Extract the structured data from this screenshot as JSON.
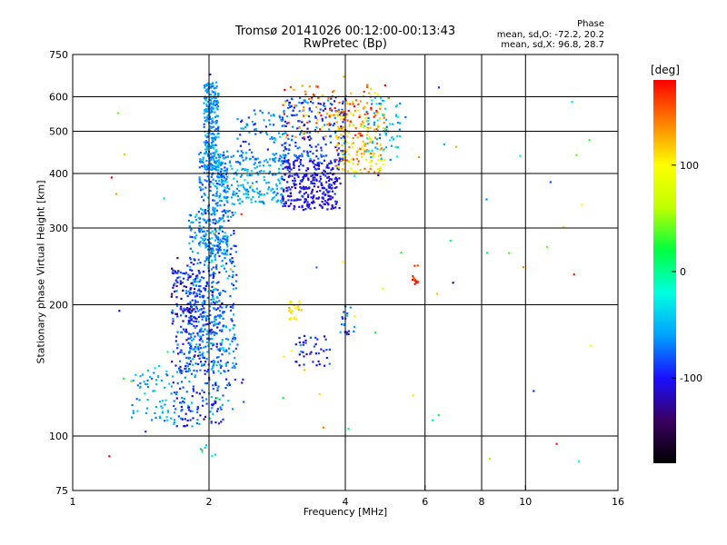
{
  "chart_data": {
    "type": "scatter",
    "title": "Tromsø 20141026 00:12:00-00:13:43",
    "subtitle": "RwPretec (Bp)",
    "phase_info": {
      "title": "Phase",
      "line1": "mean, sd,O: -72.2, 20.2",
      "line2": "mean, sd,X:  96.8, 28.7"
    },
    "xlabel": "Frequency [MHz]",
    "ylabel": "Stationary phase Virtual Height [km]",
    "x_scale": "log",
    "y_scale": "log",
    "xlim": [
      1,
      16
    ],
    "ylim": [
      75,
      750
    ],
    "x_ticks": [
      1,
      2,
      4,
      6,
      8,
      10,
      16
    ],
    "x_tick_labels": [
      "1",
      "2",
      "4",
      "6",
      "8",
      "10",
      "16"
    ],
    "y_ticks": [
      75,
      100,
      200,
      300,
      400,
      500,
      600,
      750
    ],
    "y_tick_labels": [
      "75",
      "100",
      "200",
      "300",
      "400",
      "500",
      "600",
      "750"
    ],
    "grid_x": [
      2,
      4,
      6,
      8,
      10
    ],
    "grid_y": [
      100,
      200,
      300,
      400,
      500,
      600
    ],
    "grid": true,
    "colorbar": {
      "label": "[deg]",
      "range": [
        -180,
        180
      ],
      "ticks": [
        100,
        0,
        -100
      ],
      "tick_labels": [
        "100",
        "0",
        "-100"
      ],
      "colormap": [
        "#000000",
        "#3a0060",
        "#1a10ff",
        "#00a0ff",
        "#00ffe0",
        "#00ff40",
        "#c0ff00",
        "#ffff00",
        "#ff8000",
        "#ff0000"
      ]
    },
    "clusters": [
      {
        "x": [
          1.65,
          2.15
        ],
        "y": [
          105,
          240
        ],
        "phase": -85,
        "sd": 20,
        "n": 380
      },
      {
        "x": [
          1.8,
          2.3
        ],
        "y": [
          140,
          330
        ],
        "phase": -70,
        "sd": 18,
        "n": 380
      },
      {
        "x": [
          1.9,
          2.2
        ],
        "y": [
          250,
          450
        ],
        "phase": -65,
        "sd": 15,
        "n": 260
      },
      {
        "x": [
          1.95,
          2.1
        ],
        "y": [
          400,
          650
        ],
        "phase": -60,
        "sd": 12,
        "n": 240
      },
      {
        "x": [
          1.65,
          1.9
        ],
        "y": [
          180,
          260
        ],
        "phase": -125,
        "sd": 15,
        "n": 45
      },
      {
        "x": [
          1.35,
          1.75
        ],
        "y": [
          108,
          145
        ],
        "phase": -55,
        "sd": 12,
        "n": 70
      },
      {
        "x": [
          2.1,
          2.9
        ],
        "y": [
          340,
          440
        ],
        "phase": -55,
        "sd": 12,
        "n": 200
      },
      {
        "x": [
          2.3,
          3.0
        ],
        "y": [
          420,
          560
        ],
        "phase": -70,
        "sd": 15,
        "n": 90
      },
      {
        "x": [
          2.9,
          3.9
        ],
        "y": [
          330,
          430
        ],
        "phase": -105,
        "sd": 10,
        "n": 300
      },
      {
        "x": [
          2.9,
          4.0
        ],
        "y": [
          420,
          600
        ],
        "phase": -85,
        "sd": 20,
        "n": 200
      },
      {
        "x": [
          3.8,
          4.9
        ],
        "y": [
          400,
          560
        ],
        "phase": 120,
        "sd": 25,
        "n": 150
      },
      {
        "x": [
          2.9,
          4.9
        ],
        "y": [
          480,
          640
        ],
        "phase": 140,
        "sd": 30,
        "n": 130
      },
      {
        "x": [
          4.4,
          5.3
        ],
        "y": [
          430,
          600
        ],
        "phase": -45,
        "sd": 20,
        "n": 70
      },
      {
        "x": [
          3.1,
          3.7
        ],
        "y": [
          145,
          170
        ],
        "phase": -100,
        "sd": 15,
        "n": 40
      },
      {
        "x": [
          3.0,
          3.2
        ],
        "y": [
          185,
          205
        ],
        "phase": 110,
        "sd": 8,
        "n": 25
      },
      {
        "x": [
          3.9,
          4.2
        ],
        "y": [
          170,
          200
        ],
        "phase": -80,
        "sd": 15,
        "n": 20
      },
      {
        "x": [
          5.6,
          5.8
        ],
        "y": [
          220,
          250
        ],
        "phase": 165,
        "sd": 10,
        "n": 14
      },
      {
        "x": [
          2.0,
          2.4
        ],
        "y": [
          115,
          135
        ],
        "phase": -80,
        "sd": 20,
        "n": 20
      },
      {
        "x": [
          1.9,
          2.1
        ],
        "y": [
          90,
          96
        ],
        "phase": -30,
        "sd": 10,
        "n": 6
      },
      {
        "x": [
          1.2,
          14
        ],
        "y": [
          85,
          700
        ],
        "phase": 40,
        "sd": 90,
        "n": 70
      }
    ]
  }
}
